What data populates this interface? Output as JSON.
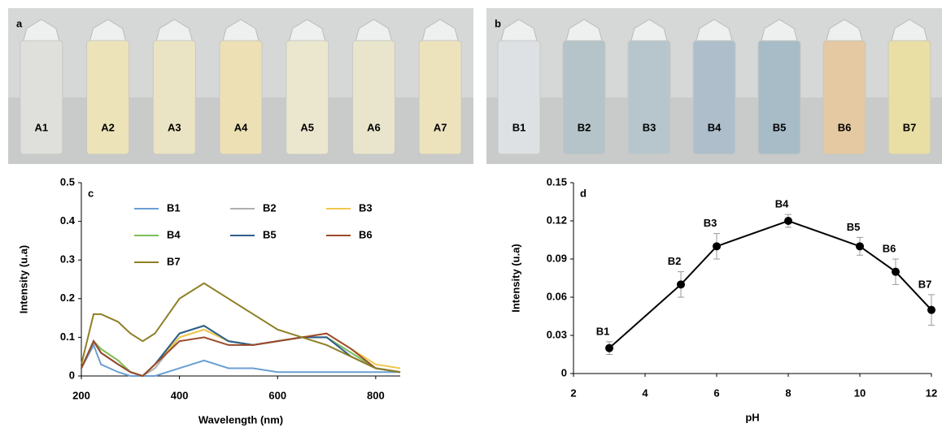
{
  "photos": [
    {
      "panel_label": "a",
      "vials": [
        "A1",
        "A2",
        "A3",
        "A4",
        "A5",
        "A6",
        "A7"
      ],
      "tints": [
        "#dfe0dc",
        "#ece3b8",
        "#ebe4c4",
        "#ede0b4",
        "#ebe7cf",
        "#e9e5cc",
        "#ece3bd"
      ]
    },
    {
      "panel_label": "b",
      "vials": [
        "B1",
        "B2",
        "B3",
        "B4",
        "B5",
        "B6",
        "B7"
      ],
      "tints": [
        "#dde1e3",
        "#b4c4c8",
        "#b6c6cc",
        "#aebfcb",
        "#a7bcc6",
        "#e4c9a2",
        "#e9dea4"
      ]
    }
  ],
  "chart_data": [
    {
      "type": "line",
      "panel_label": "c",
      "xlabel": "Wavelength (nm)",
      "ylabel": "Intensity (u.a)",
      "x": [
        200,
        225,
        240,
        275,
        300,
        325,
        350,
        400,
        450,
        500,
        550,
        600,
        650,
        700,
        750,
        800,
        850
      ],
      "xlim": [
        200,
        850
      ],
      "xticks": [
        200,
        400,
        600,
        800
      ],
      "ylim": [
        0,
        0.5
      ],
      "yticks": [
        0,
        0.1,
        0.2,
        0.3,
        0.4,
        0.5
      ],
      "series": [
        {
          "name": "B1",
          "color": "#6a9fd4",
          "values": [
            0.02,
            0.08,
            0.03,
            0.01,
            0,
            0,
            0,
            0.02,
            0.04,
            0.02,
            0.02,
            0.01,
            0.01,
            0.01,
            0.01,
            0.01,
            0.01
          ]
        },
        {
          "name": "B2",
          "color": "#b0b0b0",
          "values": [
            0.02,
            0.09,
            0.06,
            0.03,
            0.01,
            0,
            0.02,
            0.1,
            0.12,
            0.09,
            0.08,
            0.09,
            0.1,
            0.1,
            0.06,
            0.02,
            0.01
          ]
        },
        {
          "name": "B3",
          "color": "#f2c84b",
          "values": [
            0.02,
            0.09,
            0.07,
            0.04,
            0.01,
            0,
            0.03,
            0.1,
            0.12,
            0.09,
            0.08,
            0.09,
            0.1,
            0.11,
            0.07,
            0.03,
            0.02
          ]
        },
        {
          "name": "B4",
          "color": "#7dbf5a",
          "values": [
            0.02,
            0.09,
            0.07,
            0.04,
            0.01,
            0,
            0.03,
            0.11,
            0.13,
            0.09,
            0.08,
            0.09,
            0.1,
            0.1,
            0.06,
            0.02,
            0.01
          ]
        },
        {
          "name": "B5",
          "color": "#2f5d8c",
          "values": [
            0.02,
            0.09,
            0.06,
            0.03,
            0.01,
            0,
            0.03,
            0.11,
            0.13,
            0.09,
            0.08,
            0.09,
            0.1,
            0.1,
            0.05,
            0.02,
            0.01
          ]
        },
        {
          "name": "B6",
          "color": "#9c4a2a",
          "values": [
            0.02,
            0.09,
            0.06,
            0.03,
            0.01,
            0,
            0.03,
            0.09,
            0.1,
            0.08,
            0.08,
            0.09,
            0.1,
            0.11,
            0.07,
            0.02,
            0.01
          ]
        },
        {
          "name": "B7",
          "color": "#8f7f25",
          "values": [
            0.03,
            0.16,
            0.16,
            0.14,
            0.11,
            0.09,
            0.11,
            0.2,
            0.24,
            0.2,
            0.16,
            0.12,
            0.1,
            0.08,
            0.05,
            0.02,
            0.01
          ]
        }
      ]
    },
    {
      "type": "errorline",
      "panel_label": "d",
      "xlabel": "pH",
      "ylabel": "Intensity (u.a)",
      "x": [
        3,
        5,
        6,
        8,
        10,
        11,
        12
      ],
      "xlim": [
        2,
        12
      ],
      "xticks": [
        2,
        4,
        6,
        8,
        10,
        12
      ],
      "ylim": [
        0,
        0.15
      ],
      "yticks": [
        0,
        0.03,
        0.06,
        0.09,
        0.12,
        0.15
      ],
      "values": [
        0.02,
        0.07,
        0.1,
        0.12,
        0.1,
        0.08,
        0.05
      ],
      "errors": [
        0.005,
        0.01,
        0.01,
        0.005,
        0.007,
        0.01,
        0.012
      ],
      "point_labels": [
        "B1",
        "B2",
        "B3",
        "B4",
        "B5",
        "B6",
        "B7"
      ],
      "color": "#000000"
    }
  ]
}
